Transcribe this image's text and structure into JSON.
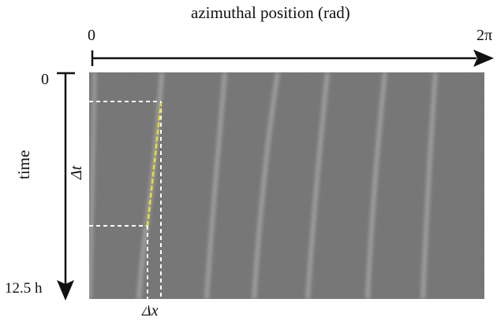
{
  "x_axis": {
    "title": "azimuthal position (rad)",
    "start_label": "0",
    "end_label": "2π"
  },
  "y_axis": {
    "title": "time",
    "start_label": "0",
    "end_label": "12.5 h"
  },
  "annotations": {
    "delta_t": "Δt",
    "delta_x": "Δx"
  },
  "colors": {
    "fit_line": "#e8e02a",
    "guide_lines": "#ffffff",
    "axis": "#111111",
    "background": "#6a6a6a",
    "stripe": "#d8d8d8"
  }
}
